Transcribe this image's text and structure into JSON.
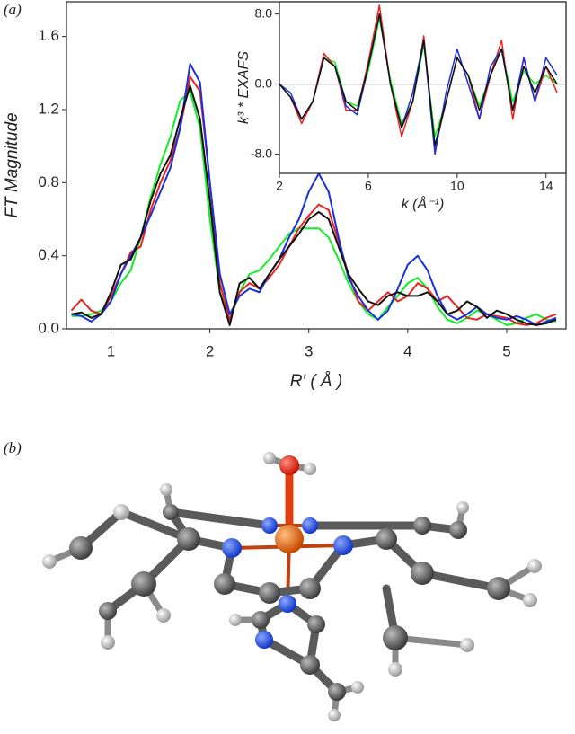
{
  "panels": {
    "a": "(a)",
    "b": "(b)"
  },
  "chart_data": [
    {
      "type": "line",
      "xlabel": "R′ ( Å )",
      "ylabel": "FT Magnitude",
      "xlim": [
        0.55,
        5.6
      ],
      "ylim": [
        0,
        1.79
      ],
      "xticks": [
        1,
        2,
        3,
        4,
        5
      ],
      "yticks": [
        {
          "value": 0,
          "label": "0.0"
        },
        {
          "value": 0.4,
          "label": "0.4"
        },
        {
          "value": 0.8,
          "label": "0.8"
        },
        {
          "value": 1.2,
          "label": "1.2"
        },
        {
          "value": 1.6,
          "label": "1.6"
        }
      ],
      "x": [
        0.6,
        0.7,
        0.8,
        0.9,
        1.0,
        1.1,
        1.2,
        1.3,
        1.4,
        1.5,
        1.6,
        1.7,
        1.8,
        1.9,
        2.0,
        2.1,
        2.2,
        2.3,
        2.4,
        2.5,
        2.6,
        2.7,
        2.8,
        2.9,
        3.0,
        3.1,
        3.2,
        3.3,
        3.4,
        3.5,
        3.6,
        3.7,
        3.8,
        3.9,
        4.0,
        4.1,
        4.2,
        4.3,
        4.4,
        4.5,
        4.6,
        4.7,
        4.8,
        4.9,
        5.0,
        5.1,
        5.2,
        5.3,
        5.4,
        5.5
      ],
      "series": [
        {
          "color": "#11ee22",
          "values": [
            0.07,
            0.07,
            0.08,
            0.1,
            0.15,
            0.25,
            0.32,
            0.5,
            0.72,
            0.9,
            1.05,
            1.25,
            1.3,
            1.1,
            0.6,
            0.2,
            0.05,
            0.2,
            0.3,
            0.32,
            0.38,
            0.45,
            0.52,
            0.55,
            0.55,
            0.55,
            0.5,
            0.38,
            0.25,
            0.15,
            0.08,
            0.05,
            0.12,
            0.18,
            0.25,
            0.28,
            0.22,
            0.12,
            0.05,
            0.03,
            0.06,
            0.1,
            0.08,
            0.05,
            0.02,
            0.03,
            0.06,
            0.08,
            0.05,
            0.04
          ]
        },
        {
          "color": "#e8231f",
          "values": [
            0.1,
            0.16,
            0.1,
            0.08,
            0.18,
            0.3,
            0.42,
            0.45,
            0.65,
            0.8,
            0.92,
            1.1,
            1.38,
            1.3,
            0.8,
            0.25,
            0.05,
            0.2,
            0.25,
            0.22,
            0.28,
            0.35,
            0.45,
            0.55,
            0.62,
            0.68,
            0.65,
            0.48,
            0.3,
            0.15,
            0.1,
            0.15,
            0.2,
            0.15,
            0.18,
            0.25,
            0.22,
            0.15,
            0.18,
            0.12,
            0.06,
            0.05,
            0.08,
            0.07,
            0.06,
            0.03,
            0.02,
            0.03,
            0.06,
            0.08
          ]
        },
        {
          "color": "#1a2fe0",
          "values": [
            0.08,
            0.07,
            0.04,
            0.08,
            0.15,
            0.3,
            0.4,
            0.5,
            0.62,
            0.75,
            0.88,
            1.1,
            1.45,
            1.35,
            0.8,
            0.3,
            0.08,
            0.18,
            0.22,
            0.2,
            0.3,
            0.38,
            0.5,
            0.6,
            0.75,
            0.85,
            0.75,
            0.5,
            0.28,
            0.18,
            0.1,
            0.05,
            0.1,
            0.22,
            0.35,
            0.4,
            0.32,
            0.18,
            0.08,
            0.05,
            0.08,
            0.12,
            0.08,
            0.06,
            0.05,
            0.07,
            0.05,
            0.02,
            0.04,
            0.06
          ]
        },
        {
          "color": "#111111",
          "values": [
            0.08,
            0.09,
            0.06,
            0.08,
            0.2,
            0.35,
            0.38,
            0.5,
            0.7,
            0.85,
            0.95,
            1.15,
            1.33,
            1.15,
            0.7,
            0.2,
            0.02,
            0.25,
            0.28,
            0.22,
            0.3,
            0.38,
            0.45,
            0.52,
            0.6,
            0.64,
            0.6,
            0.45,
            0.3,
            0.22,
            0.15,
            0.13,
            0.18,
            0.2,
            0.18,
            0.18,
            0.2,
            0.15,
            0.08,
            0.1,
            0.15,
            0.12,
            0.06,
            0.1,
            0.08,
            0.05,
            0.03,
            0.02,
            0.03,
            0.05
          ]
        }
      ]
    },
    {
      "type": "line",
      "xlabel": "k (Å⁻¹)",
      "ylabel": "k³ * EXAFS",
      "xlim": [
        2,
        14.9
      ],
      "ylim": [
        -10.2,
        9.4
      ],
      "xticks": [
        2,
        6,
        10,
        14
      ],
      "yticks": [
        {
          "value": -8,
          "label": "-8.0"
        },
        {
          "value": 0,
          "label": "0.0"
        },
        {
          "value": 8,
          "label": "8.0"
        }
      ],
      "zero_line": true,
      "x": [
        2,
        2.5,
        3,
        3.5,
        4,
        4.5,
        5,
        5.5,
        6,
        6.5,
        7,
        7.5,
        8,
        8.5,
        9,
        9.5,
        10,
        10.5,
        11,
        11.5,
        12,
        12.5,
        13,
        13.5,
        14,
        14.5
      ],
      "series": [
        {
          "color": "#11ee22",
          "values": [
            0,
            -1.5,
            -4,
            -2,
            3,
            2.5,
            -2,
            -2.5,
            1.5,
            7.5,
            0.5,
            -4.5,
            -2,
            4.5,
            -6,
            -2,
            3,
            1,
            -2.5,
            1,
            4,
            -2,
            1.5,
            0,
            1,
            0
          ]
        },
        {
          "color": "#e8231f",
          "values": [
            0,
            -1.5,
            -4.5,
            -2,
            3.5,
            2,
            -3,
            -3,
            2.5,
            9,
            0,
            -6,
            -2,
            5.5,
            -7.5,
            -2,
            3,
            1,
            -4,
            1,
            5,
            -4,
            3,
            -2,
            2,
            -1
          ]
        },
        {
          "color": "#1a2fe0",
          "values": [
            0,
            -1,
            -4,
            -2,
            3,
            2,
            -2.5,
            -3.5,
            2,
            8,
            0,
            -5,
            -1,
            5,
            -8,
            -1,
            4,
            0,
            -4,
            2,
            4,
            -3,
            3,
            -2,
            3,
            1
          ]
        },
        {
          "color": "#111111",
          "values": [
            0,
            -1.5,
            -4,
            -2,
            3,
            2,
            -2,
            -3,
            2,
            8,
            0,
            -5,
            -2,
            5,
            -7,
            -2,
            3,
            1,
            -3,
            1,
            4,
            -3,
            2,
            -1,
            2,
            0
          ]
        }
      ]
    }
  ]
}
